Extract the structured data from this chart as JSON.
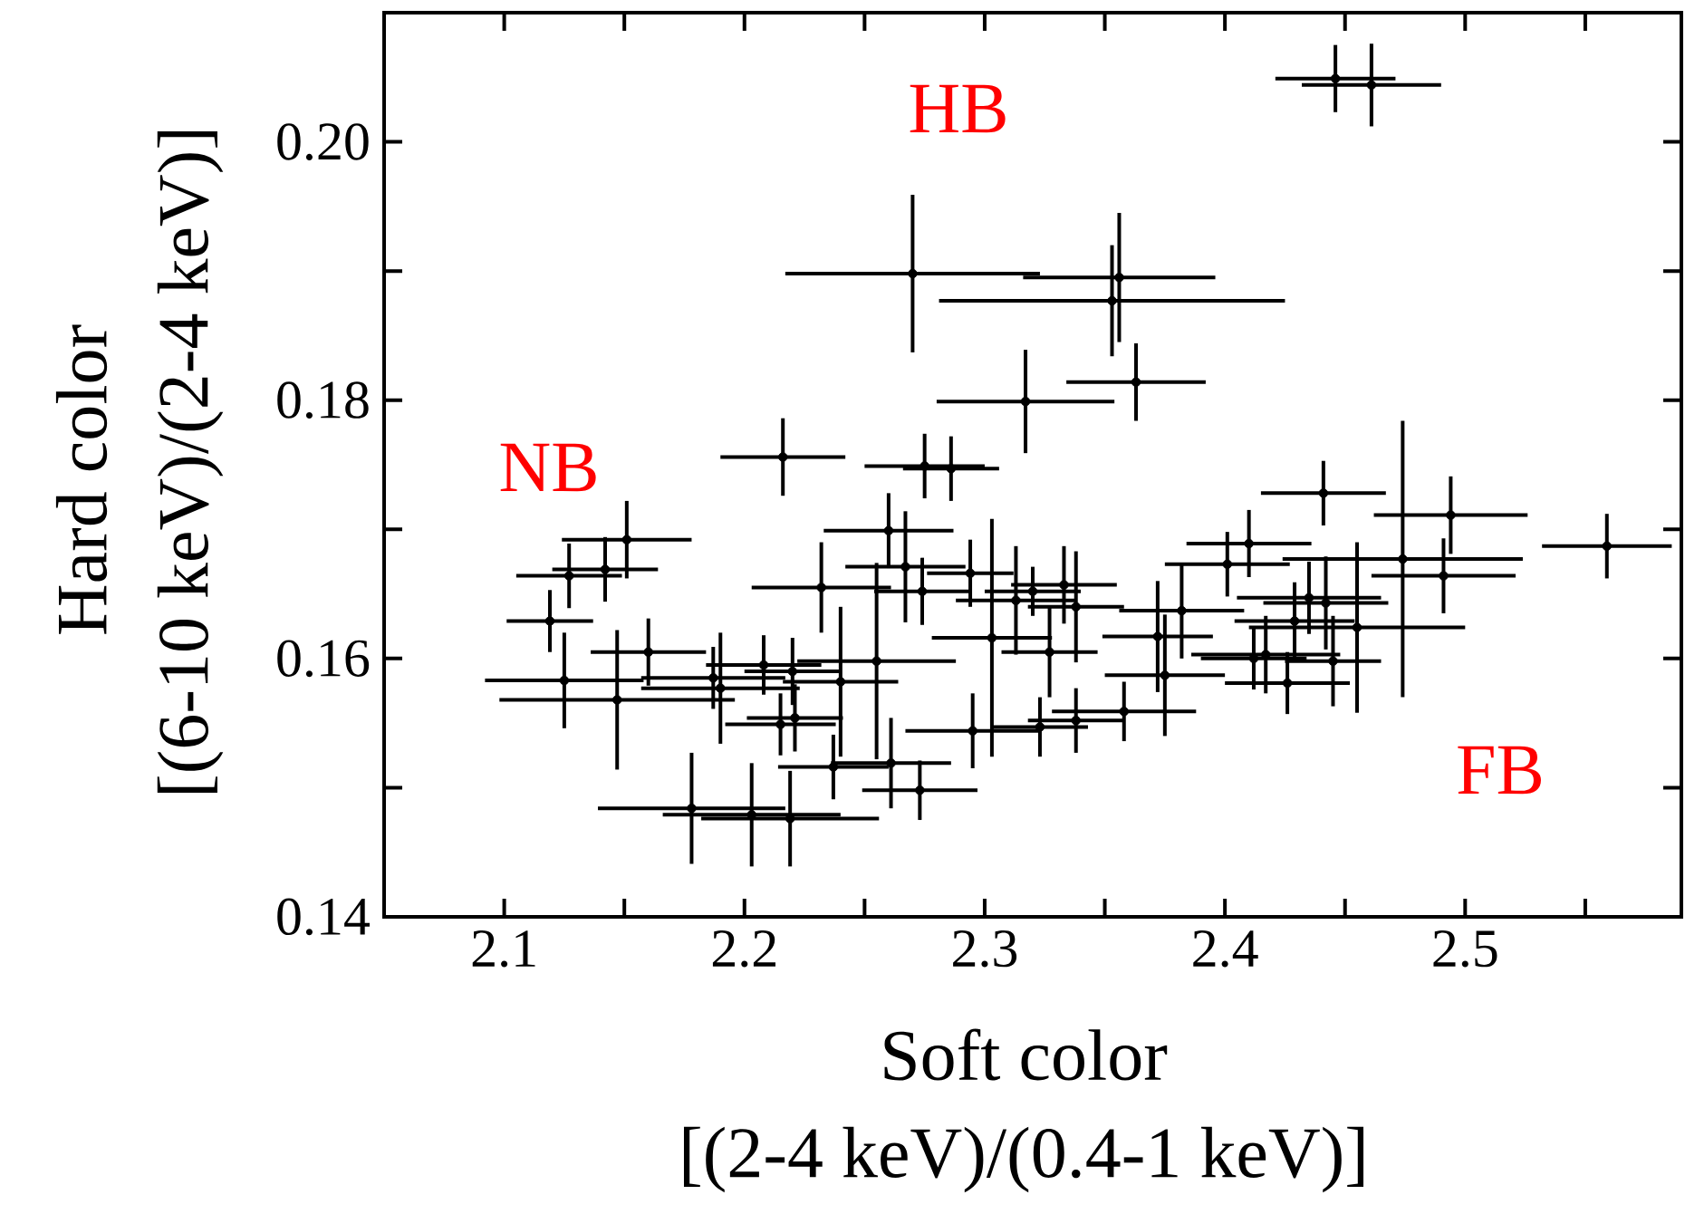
{
  "chart_data": {
    "type": "scatter",
    "xlabel": "Soft color",
    "ylabel": "Hard color",
    "annotations": [
      "[(6-10 keV)/(2-4 keV)]",
      "[(2-4 keV)/(0.4-1 keV)]",
      "HB",
      "NB",
      "FB"
    ],
    "color": "#000000",
    "xlim": [
      2.05,
      2.59
    ],
    "ylim": [
      0.14,
      0.21
    ],
    "xticks": [
      {
        "value": 2.05,
        "label": null
      },
      2.1,
      {
        "value": 2.15,
        "label": null
      },
      2.2,
      {
        "value": 2.25,
        "label": null
      },
      2.3,
      {
        "value": 2.35,
        "label": null
      },
      2.4,
      {
        "value": 2.45,
        "label": null
      },
      2.5,
      {
        "value": 2.55,
        "label": null
      }
    ],
    "yticks": [
      0.14,
      {
        "value": 0.15,
        "label": null
      },
      0.16,
      {
        "value": 0.17,
        "label": null
      },
      0.18,
      {
        "value": 0.19,
        "label": null
      },
      {
        "value": 0.2,
        "label": "0.20"
      }
    ],
    "x": [
      2.27,
      2.356,
      2.353,
      2.317,
      2.363,
      2.446,
      2.461,
      2.216,
      2.275,
      2.286,
      2.151,
      2.142,
      2.127,
      2.119,
      2.16,
      2.125,
      2.147,
      2.19,
      2.187,
      2.208,
      2.22,
      2.215,
      2.221,
      2.232,
      2.24,
      2.255,
      2.26,
      2.267,
      2.274,
      2.294,
      2.313,
      2.303,
      2.261,
      2.273,
      2.295,
      2.237,
      2.178,
      2.203,
      2.219,
      2.441,
      2.494,
      2.474,
      2.559,
      2.491,
      2.455,
      2.442,
      2.435,
      2.429,
      2.41,
      2.401,
      2.417,
      2.426,
      2.412,
      2.445,
      2.382,
      2.372,
      2.375,
      2.358,
      2.338,
      2.323,
      2.333,
      2.338,
      2.32,
      2.327
    ],
    "values": [
      0.1898,
      0.1895,
      0.1877,
      0.1799,
      0.1814,
      0.2049,
      0.2044,
      0.1756,
      0.1749,
      0.1747,
      0.1692,
      0.1669,
      0.1664,
      0.1629,
      0.1605,
      0.1583,
      0.1568,
      0.1577,
      0.1585,
      0.1595,
      0.159,
      0.1549,
      0.1554,
      0.1655,
      0.1582,
      0.1598,
      0.1699,
      0.1671,
      0.1652,
      0.1666,
      0.1645,
      0.1616,
      0.1519,
      0.1498,
      0.1544,
      0.1516,
      0.1484,
      0.1479,
      0.1476,
      0.1728,
      0.1711,
      0.1677,
      0.1687,
      0.1664,
      0.1624,
      0.1643,
      0.1647,
      0.1629,
      0.1689,
      0.1673,
      0.1603,
      0.1581,
      0.16,
      0.1598,
      0.1637,
      0.1617,
      0.1587,
      0.1559,
      0.1552,
      0.1547,
      0.1657,
      0.164,
      0.1652,
      0.1605
    ],
    "xerrors": [
      0.053,
      0.04,
      0.072,
      0.037,
      0.029,
      0.025,
      0.029,
      0.026,
      0.025,
      0.02,
      0.027,
      0.022,
      0.022,
      0.018,
      0.024,
      0.033,
      0.049,
      0.033,
      0.03,
      0.024,
      0.02,
      0.023,
      0.02,
      0.029,
      0.024,
      0.033,
      0.027,
      0.025,
      0.02,
      0.018,
      0.025,
      0.025,
      0.025,
      0.024,
      0.028,
      0.023,
      0.039,
      0.037,
      0.037,
      0.026,
      0.032,
      0.05,
      0.027,
      0.03,
      0.045,
      0.026,
      0.03,
      0.025,
      0.026,
      0.026,
      0.031,
      0.026,
      0.022,
      0.02,
      0.026,
      0.023,
      0.025,
      0.03,
      0.02,
      0.02,
      0.022,
      0.02,
      0.02,
      0.02
    ],
    "errors": [
      0.0061,
      0.005,
      0.0043,
      0.004,
      0.003,
      0.0026,
      0.0032,
      0.003,
      0.0025,
      0.0025,
      0.003,
      0.0025,
      0.0025,
      0.0024,
      0.0026,
      0.0037,
      0.0054,
      0.0043,
      0.0024,
      0.0023,
      0.0026,
      0.0024,
      0.0026,
      0.0035,
      0.0058,
      0.0076,
      0.0029,
      0.0043,
      0.0026,
      0.0026,
      0.0042,
      0.0092,
      0.0035,
      0.0023,
      0.0029,
      0.0025,
      0.0043,
      0.004,
      0.0037,
      0.0025,
      0.003,
      0.0107,
      0.0025,
      0.0029,
      0.0066,
      0.0036,
      0.0028,
      0.003,
      0.0026,
      0.0025,
      0.003,
      0.0024,
      0.0024,
      0.0035,
      0.0037,
      0.0043,
      0.0047,
      0.0023,
      0.0025,
      0.0023,
      0.003,
      0.0043,
      0.0019,
      0.0035
    ]
  }
}
